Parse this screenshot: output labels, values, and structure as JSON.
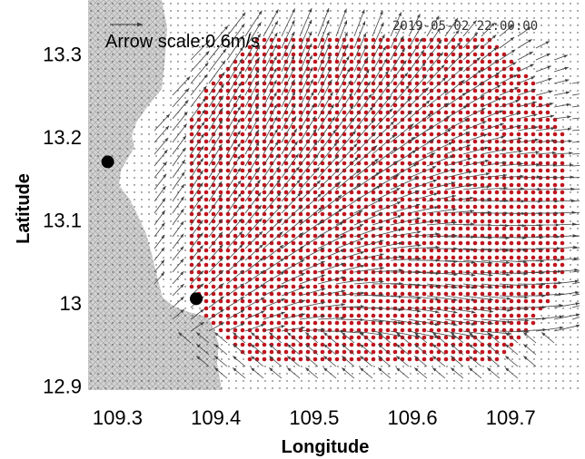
{
  "map": {
    "timestamp": "2019-05-02 22:00:00",
    "arrow_scale_label": "Arrow scale:0.6m/s",
    "arrow_scale_value_mps": 0.6,
    "xlabel": "Longitude",
    "ylabel": "Latitude",
    "xlim": [
      109.27,
      109.77
    ],
    "ylim": [
      12.895,
      13.365
    ],
    "xticks": [
      {
        "value": 109.3,
        "label": "109.3"
      },
      {
        "value": 109.4,
        "label": "109.4"
      },
      {
        "value": 109.5,
        "label": "109.5"
      },
      {
        "value": 109.6,
        "label": "109.6"
      },
      {
        "value": 109.7,
        "label": "109.7"
      }
    ],
    "yticks": [
      {
        "value": 12.9,
        "label": "12.9"
      },
      {
        "value": 13.0,
        "label": "13"
      },
      {
        "value": 13.1,
        "label": "13.1"
      },
      {
        "value": 13.2,
        "label": "13.2"
      },
      {
        "value": 13.3,
        "label": "13.3"
      }
    ],
    "stations": [
      {
        "lon": 109.29,
        "lat": 13.17
      },
      {
        "lon": 109.38,
        "lat": 13.005
      }
    ],
    "colors": {
      "land": "#d3d3d3",
      "land_hatch": "#a9a9a9",
      "coverage_dot": "#c0141c",
      "grid_dot": "#333333",
      "arrow": "#404040",
      "station": "#000000"
    },
    "coverage_center": [
      109.56,
      13.12
    ],
    "coverage_radius_deg": 0.205
  }
}
